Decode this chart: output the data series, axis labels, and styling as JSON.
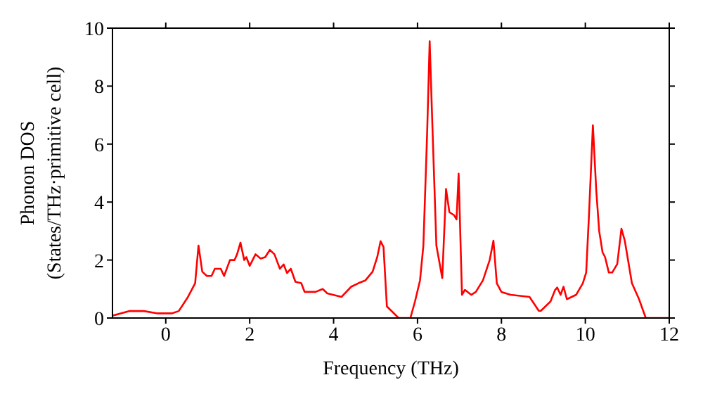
{
  "chart_data": {
    "type": "line",
    "xlabel": "Frequency (THz)",
    "ylabel": "Phonon DOS\n(States/THz·primitive cell)",
    "x": [
      -1.27,
      -0.86,
      -0.52,
      -0.19,
      0.14,
      0.31,
      0.53,
      0.7,
      0.78,
      0.87,
      0.98,
      1.09,
      1.17,
      1.31,
      1.39,
      1.53,
      1.64,
      1.7,
      1.78,
      1.87,
      1.92,
      2.0,
      2.14,
      2.26,
      2.37,
      2.48,
      2.59,
      2.72,
      2.81,
      2.89,
      2.98,
      3.09,
      3.23,
      3.31,
      3.57,
      3.74,
      3.85,
      4.19,
      4.42,
      4.59,
      4.76,
      4.93,
      5.04,
      5.12,
      5.19,
      5.27,
      5.55,
      5.83,
      5.94,
      6.06,
      6.14,
      6.23,
      6.29,
      6.36,
      6.45,
      6.59,
      6.68,
      6.76,
      6.87,
      6.93,
      6.98,
      7.06,
      7.13,
      7.28,
      7.39,
      7.56,
      7.72,
      7.81,
      7.89,
      8.0,
      8.22,
      8.67,
      8.89,
      8.94,
      9.17,
      9.28,
      9.33,
      9.41,
      9.48,
      9.56,
      9.78,
      9.94,
      10.02,
      10.09,
      10.18,
      10.26,
      10.33,
      10.41,
      10.47,
      10.56,
      10.64,
      10.76,
      10.86,
      10.94,
      11.11,
      11.28,
      11.44,
      12.0
    ],
    "series": [
      {
        "color": "#ff0000",
        "values": [
          0.08,
          0.24,
          0.24,
          0.16,
          0.16,
          0.24,
          0.73,
          1.2,
          2.5,
          1.6,
          1.45,
          1.45,
          1.7,
          1.7,
          1.45,
          2.0,
          2.0,
          2.2,
          2.6,
          2.0,
          2.1,
          1.8,
          2.2,
          2.05,
          2.1,
          2.35,
          2.2,
          1.7,
          1.85,
          1.55,
          1.7,
          1.25,
          1.2,
          0.9,
          0.9,
          1.0,
          0.85,
          0.73,
          1.08,
          1.2,
          1.3,
          1.6,
          2.1,
          2.65,
          2.45,
          0.4,
          0.0,
          0.0,
          0.57,
          1.3,
          2.5,
          6.4,
          9.55,
          6.4,
          2.5,
          1.38,
          4.45,
          3.65,
          3.55,
          3.4,
          4.98,
          0.8,
          0.97,
          0.8,
          0.9,
          1.3,
          2.0,
          2.67,
          1.2,
          0.9,
          0.8,
          0.73,
          0.25,
          0.25,
          0.57,
          0.97,
          1.05,
          0.8,
          1.08,
          0.65,
          0.8,
          1.2,
          1.57,
          3.65,
          6.65,
          4.4,
          3.0,
          2.27,
          2.1,
          1.57,
          1.57,
          1.86,
          3.08,
          2.67,
          1.2,
          0.65,
          0.0,
          0.0
        ]
      }
    ],
    "xlim": [
      -1.27,
      12
    ],
    "xticks": [
      0,
      2,
      4,
      6,
      8,
      10,
      12
    ],
    "ylim": [
      0,
      10
    ],
    "yticks": [
      0,
      2,
      4,
      6,
      8,
      10
    ],
    "grid": false,
    "legend": false,
    "marker": "none",
    "line_style": "solid"
  }
}
